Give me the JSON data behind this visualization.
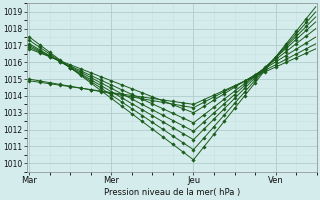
{
  "bg_color": "#d4ecec",
  "grid_color_major": "#b0cccc",
  "grid_color_minor": "#c8e0e0",
  "line_color": "#1a5c1a",
  "marker_color": "#1a5c1a",
  "xlabel": "Pression niveau de la mer( hPa )",
  "xtick_labels": [
    "Mar",
    "Mer",
    "Jeu",
    "Ven"
  ],
  "xtick_positions": [
    0,
    96,
    192,
    288
  ],
  "xlim": [
    -3,
    336
  ],
  "ylim": [
    1009.5,
    1019.5
  ],
  "yticks": [
    1010,
    1011,
    1012,
    1013,
    1014,
    1015,
    1016,
    1017,
    1018,
    1019
  ],
  "series": [
    {
      "points": [
        [
          0,
          1017.5
        ],
        [
          192,
          1010.2
        ],
        [
          335,
          1019.3
        ]
      ]
    },
    {
      "points": [
        [
          0,
          1017.3
        ],
        [
          192,
          1010.8
        ],
        [
          335,
          1019.0
        ]
      ]
    },
    {
      "points": [
        [
          0,
          1017.1
        ],
        [
          192,
          1011.4
        ],
        [
          335,
          1018.7
        ]
      ]
    },
    {
      "points": [
        [
          0,
          1017.0
        ],
        [
          192,
          1011.9
        ],
        [
          335,
          1018.4
        ]
      ]
    },
    {
      "points": [
        [
          0,
          1016.9
        ],
        [
          192,
          1012.4
        ],
        [
          335,
          1018.0
        ]
      ]
    },
    {
      "points": [
        [
          0,
          1016.8
        ],
        [
          192,
          1013.0
        ],
        [
          335,
          1017.5
        ]
      ]
    },
    {
      "points": [
        [
          0,
          1015.0
        ],
        [
          192,
          1013.3
        ],
        [
          335,
          1017.1
        ]
      ]
    },
    {
      "points": [
        [
          0,
          1014.9
        ],
        [
          192,
          1013.5
        ],
        [
          335,
          1016.8
        ]
      ]
    }
  ]
}
